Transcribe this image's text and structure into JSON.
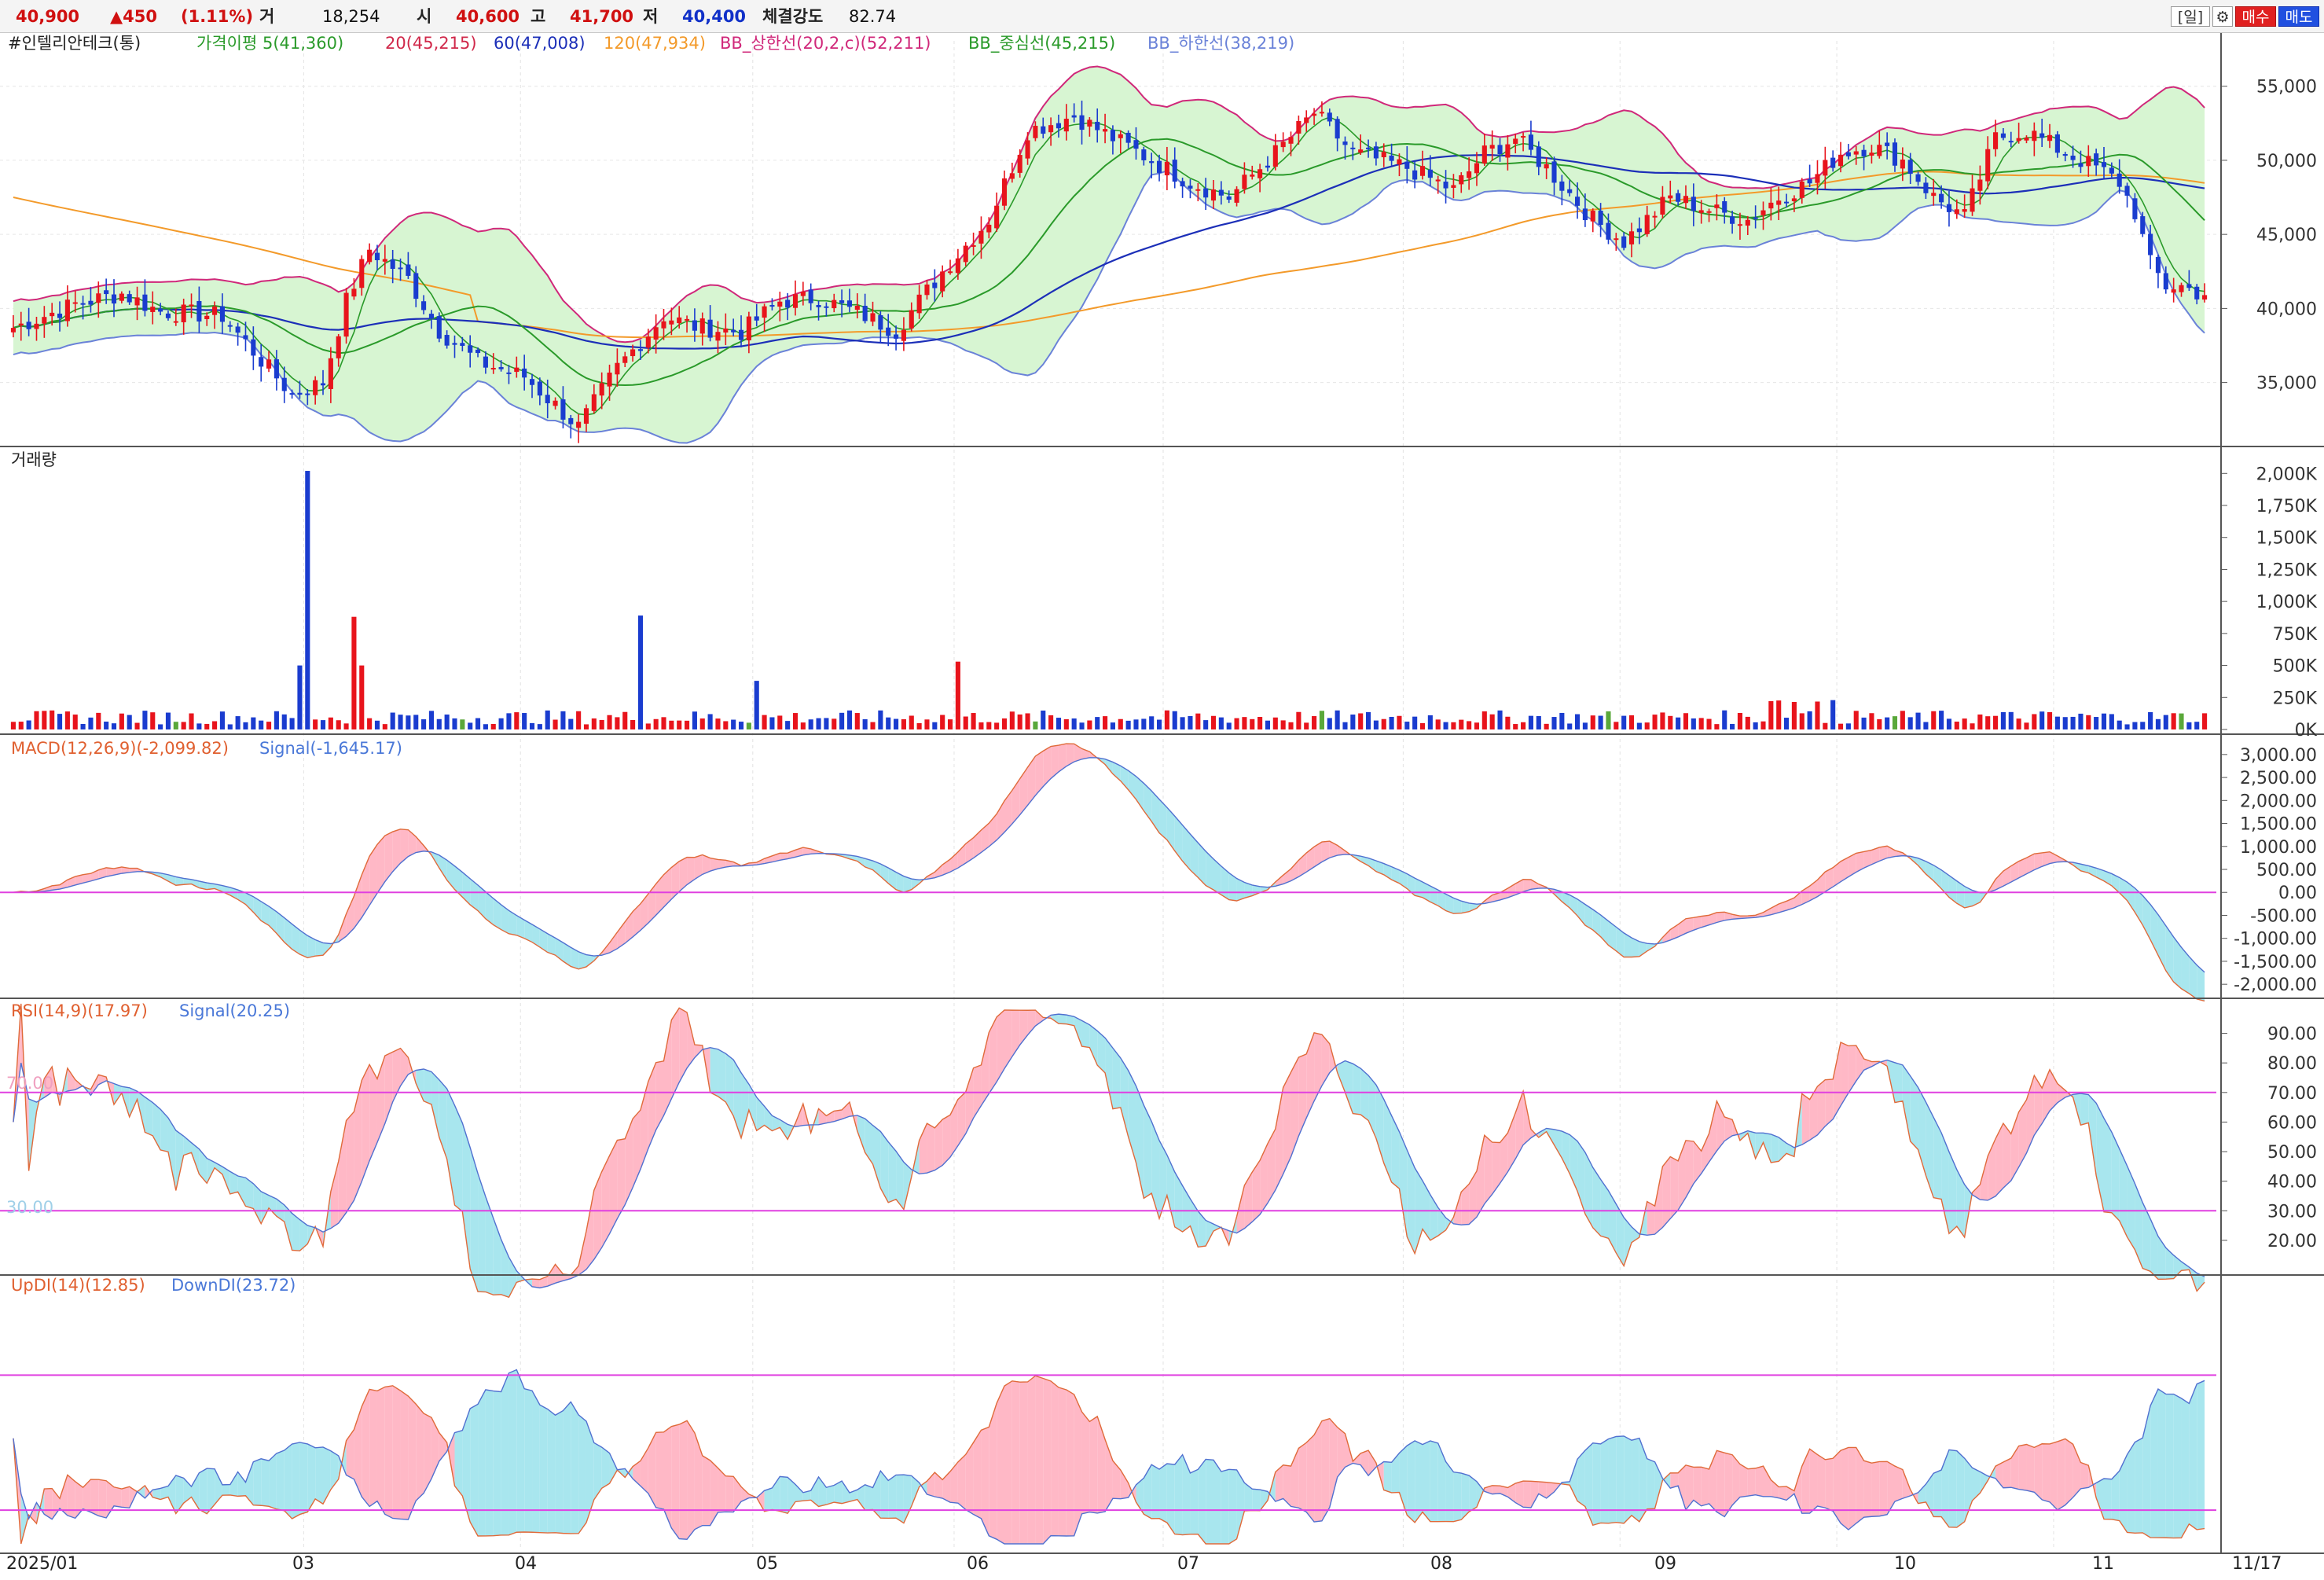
{
  "header": {
    "price": "40,900",
    "change": "▲450",
    "change_pct": "(1.11%)",
    "volume_label": "거",
    "volume": "18,254",
    "open_label": "시",
    "open": "40,600",
    "high_label": "고",
    "high": "41,700",
    "low_label": "저",
    "low": "40,400",
    "strength_label": "체결강도",
    "strength": "82.74",
    "period_button": "[일]",
    "settings_icon": "gear-icon",
    "buy_button": "매수",
    "sell_button": "매도"
  },
  "colors": {
    "up": "#e8141c",
    "down": "#1a3ccf",
    "ma5": "#2a9a2a",
    "ma20": "#d0284a",
    "ma60": "#1c2fb8",
    "ma120": "#f39a2a",
    "bb_upper": "#d0287a",
    "bb_mid": "#2a9a2a",
    "bb_lower": "#6a82d8",
    "bb_fill": "#d7f5d2",
    "pos_fill": "#ffb8c6",
    "neg_fill": "#a8e6ee",
    "ref_line": "#e040e0"
  },
  "panels": {
    "price": {
      "legend": [
        "#인텔리안테크(통)",
        "가격이평 5(41,360)",
        "20(45,215)",
        "60(47,008)",
        "120(47,934)",
        "BB_상한선(20,2,c)(52,211)",
        "BB_중심선(45,215)",
        "BB_하한선(38,219)"
      ],
      "y_ticks": [
        "55,000",
        "50,000",
        "45,000",
        "40,000",
        "35,000"
      ]
    },
    "volume": {
      "legend": [
        "거래량"
      ],
      "y_ticks": [
        "2,000K",
        "1,750K",
        "1,500K",
        "1,250K",
        "1,000K",
        "750K",
        "500K",
        "250K",
        "0K"
      ]
    },
    "macd": {
      "legend": [
        "MACD(12,26,9)(-2,099.82)",
        "Signal(-1,645.17)"
      ],
      "y_ticks": [
        "3,000.00",
        "2,500.00",
        "2,000.00",
        "1,500.00",
        "1,000.00",
        "500.00",
        "0.00",
        "-500.00",
        "-1,000.00",
        "-1,500.00",
        "-2,000.00"
      ]
    },
    "rsi": {
      "legend": [
        "RSI(14,9)(17.97)",
        "Signal(20.25)"
      ],
      "y_ticks": [
        "90.00",
        "80.00",
        "70.00",
        "60.00",
        "50.00",
        "40.00",
        "30.00",
        "20.00"
      ],
      "ref_labels": [
        "70.00",
        "30.00"
      ]
    },
    "dmi": {
      "legend": [
        "UpDI(14)(12.85)",
        "DownDI(23.72)"
      ]
    }
  },
  "x_axis": {
    "labels": [
      "2025/01",
      "03",
      "04",
      "05",
      "06",
      "07",
      "08",
      "09",
      "10",
      "11"
    ],
    "last_date": "11/17"
  },
  "chart_data": {
    "type": "candlestick",
    "title": "인텔리안테크(통)",
    "ylim": [
      31000,
      57000
    ],
    "grid": true,
    "month_start_index": [
      0,
      38,
      66,
      96,
      122,
      149,
      180,
      208,
      236,
      264
    ],
    "ohlc_anchor_closes": [
      38700,
      40300,
      41000,
      39800,
      39500,
      36500,
      34200,
      35000,
      40500,
      44000,
      42000,
      38500,
      36400,
      35400,
      32000,
      36000,
      39500,
      38800,
      38400,
      40500,
      40700,
      39500,
      38500,
      42500,
      46000,
      52000,
      53000,
      51500,
      50000,
      48500,
      47500,
      50500,
      53200,
      50500,
      49500,
      48000,
      50500,
      51500,
      49500,
      46000,
      44500,
      47500,
      46500,
      46000,
      47500,
      48500,
      50500,
      51000,
      50000,
      47500,
      46200,
      51500,
      52000,
      50500,
      49500,
      48500,
      46500,
      43000,
      41500,
      41500,
      40900
    ],
    "ohlc_anchor_index": [
      0,
      8,
      14,
      19,
      27,
      32,
      36,
      40,
      43,
      46,
      51,
      55,
      60,
      66,
      73,
      78,
      84,
      88,
      94,
      99,
      104,
      110,
      114,
      120,
      126,
      131,
      137,
      142,
      147,
      152,
      157,
      163,
      168,
      173,
      180,
      186,
      190,
      194,
      198,
      204,
      208,
      214,
      220,
      224,
      228,
      232,
      236,
      240,
      244,
      248,
      252,
      256,
      260,
      265,
      269,
      272,
      274,
      276,
      278,
      280,
      283
    ],
    "volume_peaks_k": {
      "38": 2020,
      "44": 880,
      "81": 890,
      "96": 380,
      "122": 530
    }
  }
}
